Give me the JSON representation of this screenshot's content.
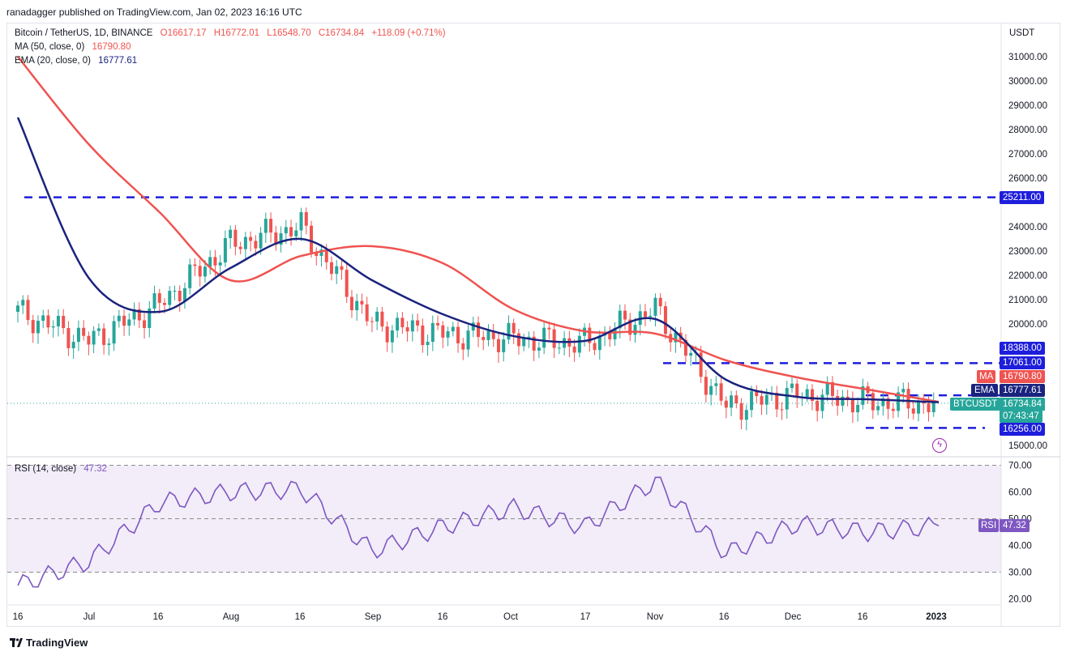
{
  "header": {
    "publisher": "ranadagger published on TradingView.com, Jan 02, 2023 16:16 UTC"
  },
  "legend": {
    "symbol": "Bitcoin / TetherUS, 1D, BINANCE",
    "open": "O16617.17",
    "high": "H16772.01",
    "low": "L16548.70",
    "close": "C16734.84",
    "change": "+118.09 (+0.71%)",
    "ma_label": "MA (50, close, 0)",
    "ma_value": "16790.80",
    "ema_label": "EMA (20, close, 0)",
    "ema_value": "16777.61",
    "rsi_label": "RSI (14, close)",
    "rsi_value": "47.32"
  },
  "price_axis": {
    "unit": "USDT",
    "ticks": [
      "31000.00",
      "30000.00",
      "29000.00",
      "28000.00",
      "27000.00",
      "26000.00",
      "24000.00",
      "23000.00",
      "22000.00",
      "21000.00",
      "20000.00",
      "15000.00"
    ]
  },
  "tags": {
    "level_25211": "25211.00",
    "level_18388": "18388.00",
    "level_17061": "17061.00",
    "ma_tag": "MA",
    "ma_tag_value": "16790.80",
    "ema_tag": "EMA",
    "ema_tag_value": "16777.61",
    "symbol_tag": "BTCUSDT",
    "price_value": "16734.84",
    "countdown": "07:43:47",
    "level_16256": "16256.00",
    "rsi_tag": "RSI",
    "rsi_tag_value": "47.32"
  },
  "rsi_axis": {
    "ticks": [
      "70.00",
      "60.00",
      "50.00",
      "40.00",
      "30.00",
      "20.00"
    ]
  },
  "time_axis": {
    "ticks": [
      "16",
      "Jul",
      "16",
      "Aug",
      "16",
      "Sep",
      "16",
      "Oct",
      "17",
      "Nov",
      "16",
      "Dec",
      "16",
      "2023"
    ]
  },
  "branding": {
    "logo_text": "TradingView"
  },
  "colors": {
    "ma": "#ef5350",
    "ema": "#1a237e",
    "up": "#26a69a",
    "down": "#ef5350",
    "levels": "#1e1edb",
    "rsi": "#7e57c2"
  },
  "chart_data": [
    {
      "type": "line",
      "title": "Bitcoin / TetherUS, 1D, BINANCE",
      "ylabel": "USDT",
      "x": [
        "Jun 16",
        "Jul 1",
        "Jul 16",
        "Aug 1",
        "Aug 16",
        "Sep 1",
        "Sep 16",
        "Oct 1",
        "Oct 17",
        "Nov 1",
        "Nov 16",
        "Dec 1",
        "Dec 16",
        "Jan 1"
      ],
      "series": [
        {
          "name": "Close",
          "values": [
            20500,
            19300,
            20800,
            23300,
            24000,
            20000,
            19600,
            19400,
            19200,
            20600,
            16600,
            17100,
            16800,
            16700
          ]
        },
        {
          "name": "MA (50, close, 0)",
          "values": [
            31000,
            27400,
            24600,
            21800,
            22800,
            23200,
            22500,
            20600,
            19700,
            19600,
            18500,
            17800,
            17300,
            16790.8
          ]
        },
        {
          "name": "EMA (20, close, 0)",
          "values": [
            28500,
            21900,
            20500,
            22300,
            23500,
            21800,
            20400,
            19500,
            19300,
            20200,
            17700,
            17000,
            16900,
            16777.61
          ]
        }
      ],
      "horizontal_levels": [
        25211,
        18388,
        17061,
        16256
      ],
      "last_close": 16734.84,
      "ylim": [
        14500,
        32500
      ]
    },
    {
      "type": "line",
      "title": "RSI (14, close)",
      "x": [
        "Jun 16",
        "Jul 1",
        "Jul 16",
        "Aug 1",
        "Aug 16",
        "Sep 1",
        "Sep 16",
        "Oct 1",
        "Oct 17",
        "Nov 1",
        "Nov 16",
        "Dec 1",
        "Dec 16",
        "Jan 1"
      ],
      "series": [
        {
          "name": "RSI (14, close)",
          "values": [
            25,
            34,
            56,
            60,
            61,
            38,
            47,
            54,
            47,
            64,
            37,
            48,
            45,
            47.32
          ]
        }
      ],
      "bands": [
        30,
        50,
        70
      ],
      "ylim": [
        18,
        72
      ]
    }
  ]
}
